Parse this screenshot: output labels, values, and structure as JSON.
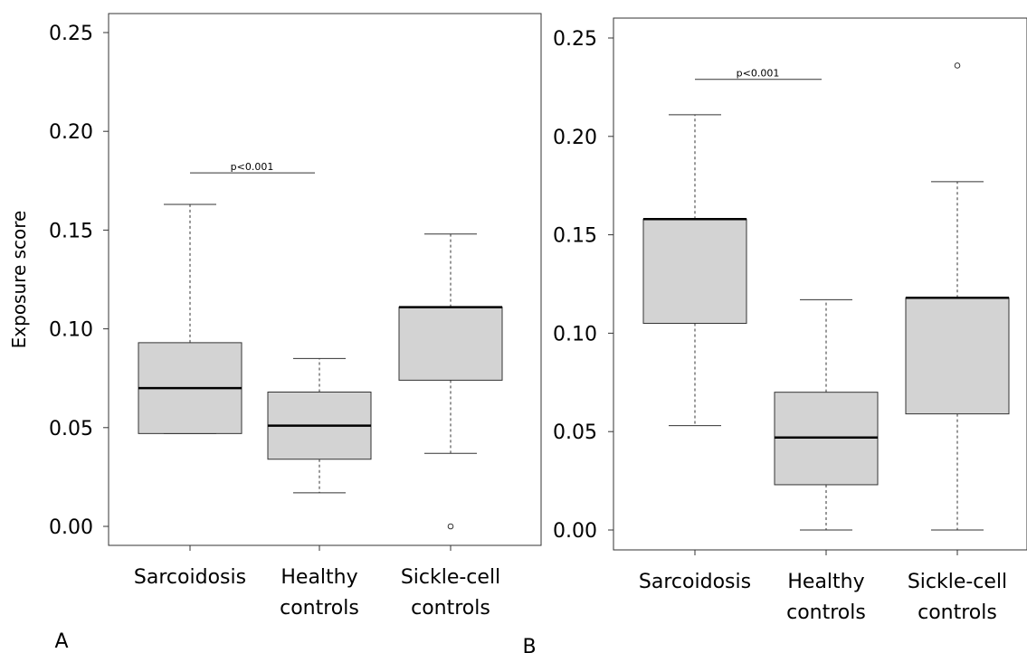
{
  "chart_data": [
    {
      "type": "box",
      "panel_label": "A",
      "ylabel": "Exposure score",
      "ylim": [
        0,
        0.25
      ],
      "yticks": [
        "0.00",
        "0.05",
        "0.10",
        "0.15",
        "0.20",
        "0.25"
      ],
      "categories": [
        [
          "Sarcoidosis"
        ],
        [
          "Healthy",
          "controls"
        ],
        [
          "Sickle-cell",
          "controls"
        ]
      ],
      "boxes": [
        {
          "whisker_low": 0.047,
          "q1": 0.047,
          "median": 0.07,
          "q3": 0.093,
          "whisker_high": 0.163,
          "outliers": []
        },
        {
          "whisker_low": 0.017,
          "q1": 0.034,
          "median": 0.051,
          "q3": 0.068,
          "whisker_high": 0.085,
          "outliers": []
        },
        {
          "whisker_low": 0.037,
          "q1": 0.074,
          "median": 0.111,
          "q3": 0.111,
          "whisker_high": 0.148,
          "outliers": [
            0.0
          ]
        }
      ],
      "annotation": {
        "text": "p<0.001",
        "y": 0.179,
        "from": 0,
        "to": 1
      }
    },
    {
      "type": "box",
      "panel_label": "B",
      "ylabel": "",
      "ylim": [
        0,
        0.25
      ],
      "yticks": [
        "0.00",
        "0.05",
        "0.10",
        "0.15",
        "0.20",
        "0.25"
      ],
      "categories": [
        [
          "Sarcoidosis"
        ],
        [
          "Healthy",
          "controls"
        ],
        [
          "Sickle-cell",
          "controls"
        ]
      ],
      "boxes": [
        {
          "whisker_low": 0.053,
          "q1": 0.105,
          "median": 0.158,
          "q3": 0.158,
          "whisker_high": 0.211,
          "outliers": []
        },
        {
          "whisker_low": 0.0,
          "q1": 0.023,
          "median": 0.047,
          "q3": 0.07,
          "whisker_high": 0.117,
          "outliers": []
        },
        {
          "whisker_low": 0.0,
          "q1": 0.059,
          "median": 0.118,
          "q3": 0.118,
          "whisker_high": 0.177,
          "outliers": [
            0.236
          ]
        }
      ],
      "annotation": {
        "text": "p<0.001",
        "y": 0.229,
        "from": 0,
        "to": 1
      }
    }
  ]
}
